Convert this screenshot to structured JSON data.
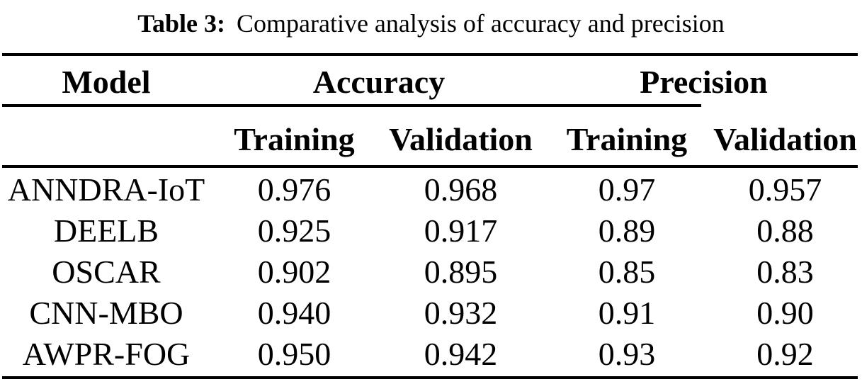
{
  "caption": {
    "label": "Table 3:",
    "text": "Comparative analysis of accuracy and precision"
  },
  "table": {
    "model_header": "Model",
    "groups": [
      "Accuracy",
      "Precision"
    ],
    "subheaders": [
      "Training",
      "Validation",
      "Training",
      "Validation"
    ],
    "rows": [
      {
        "model": "ANNDRA-IoT",
        "acc_training": "0.976",
        "acc_validation": "0.968",
        "prec_training": "0.97",
        "prec_validation": "0.957"
      },
      {
        "model": "DEELB",
        "acc_training": "0.925",
        "acc_validation": "0.917",
        "prec_training": "0.89",
        "prec_validation": "0.88"
      },
      {
        "model": "OSCAR",
        "acc_training": "0.902",
        "acc_validation": "0.895",
        "prec_training": "0.85",
        "prec_validation": "0.83"
      },
      {
        "model": "CNN-MBO",
        "acc_training": "0.940",
        "acc_validation": "0.932",
        "prec_training": "0.91",
        "prec_validation": "0.90"
      },
      {
        "model": "AWPR-FOG",
        "acc_training": "0.950",
        "acc_validation": "0.942",
        "prec_training": "0.93",
        "prec_validation": "0.92"
      }
    ]
  },
  "colors": {
    "text": "#000000",
    "background": "#ffffff",
    "rule": "#000000"
  }
}
